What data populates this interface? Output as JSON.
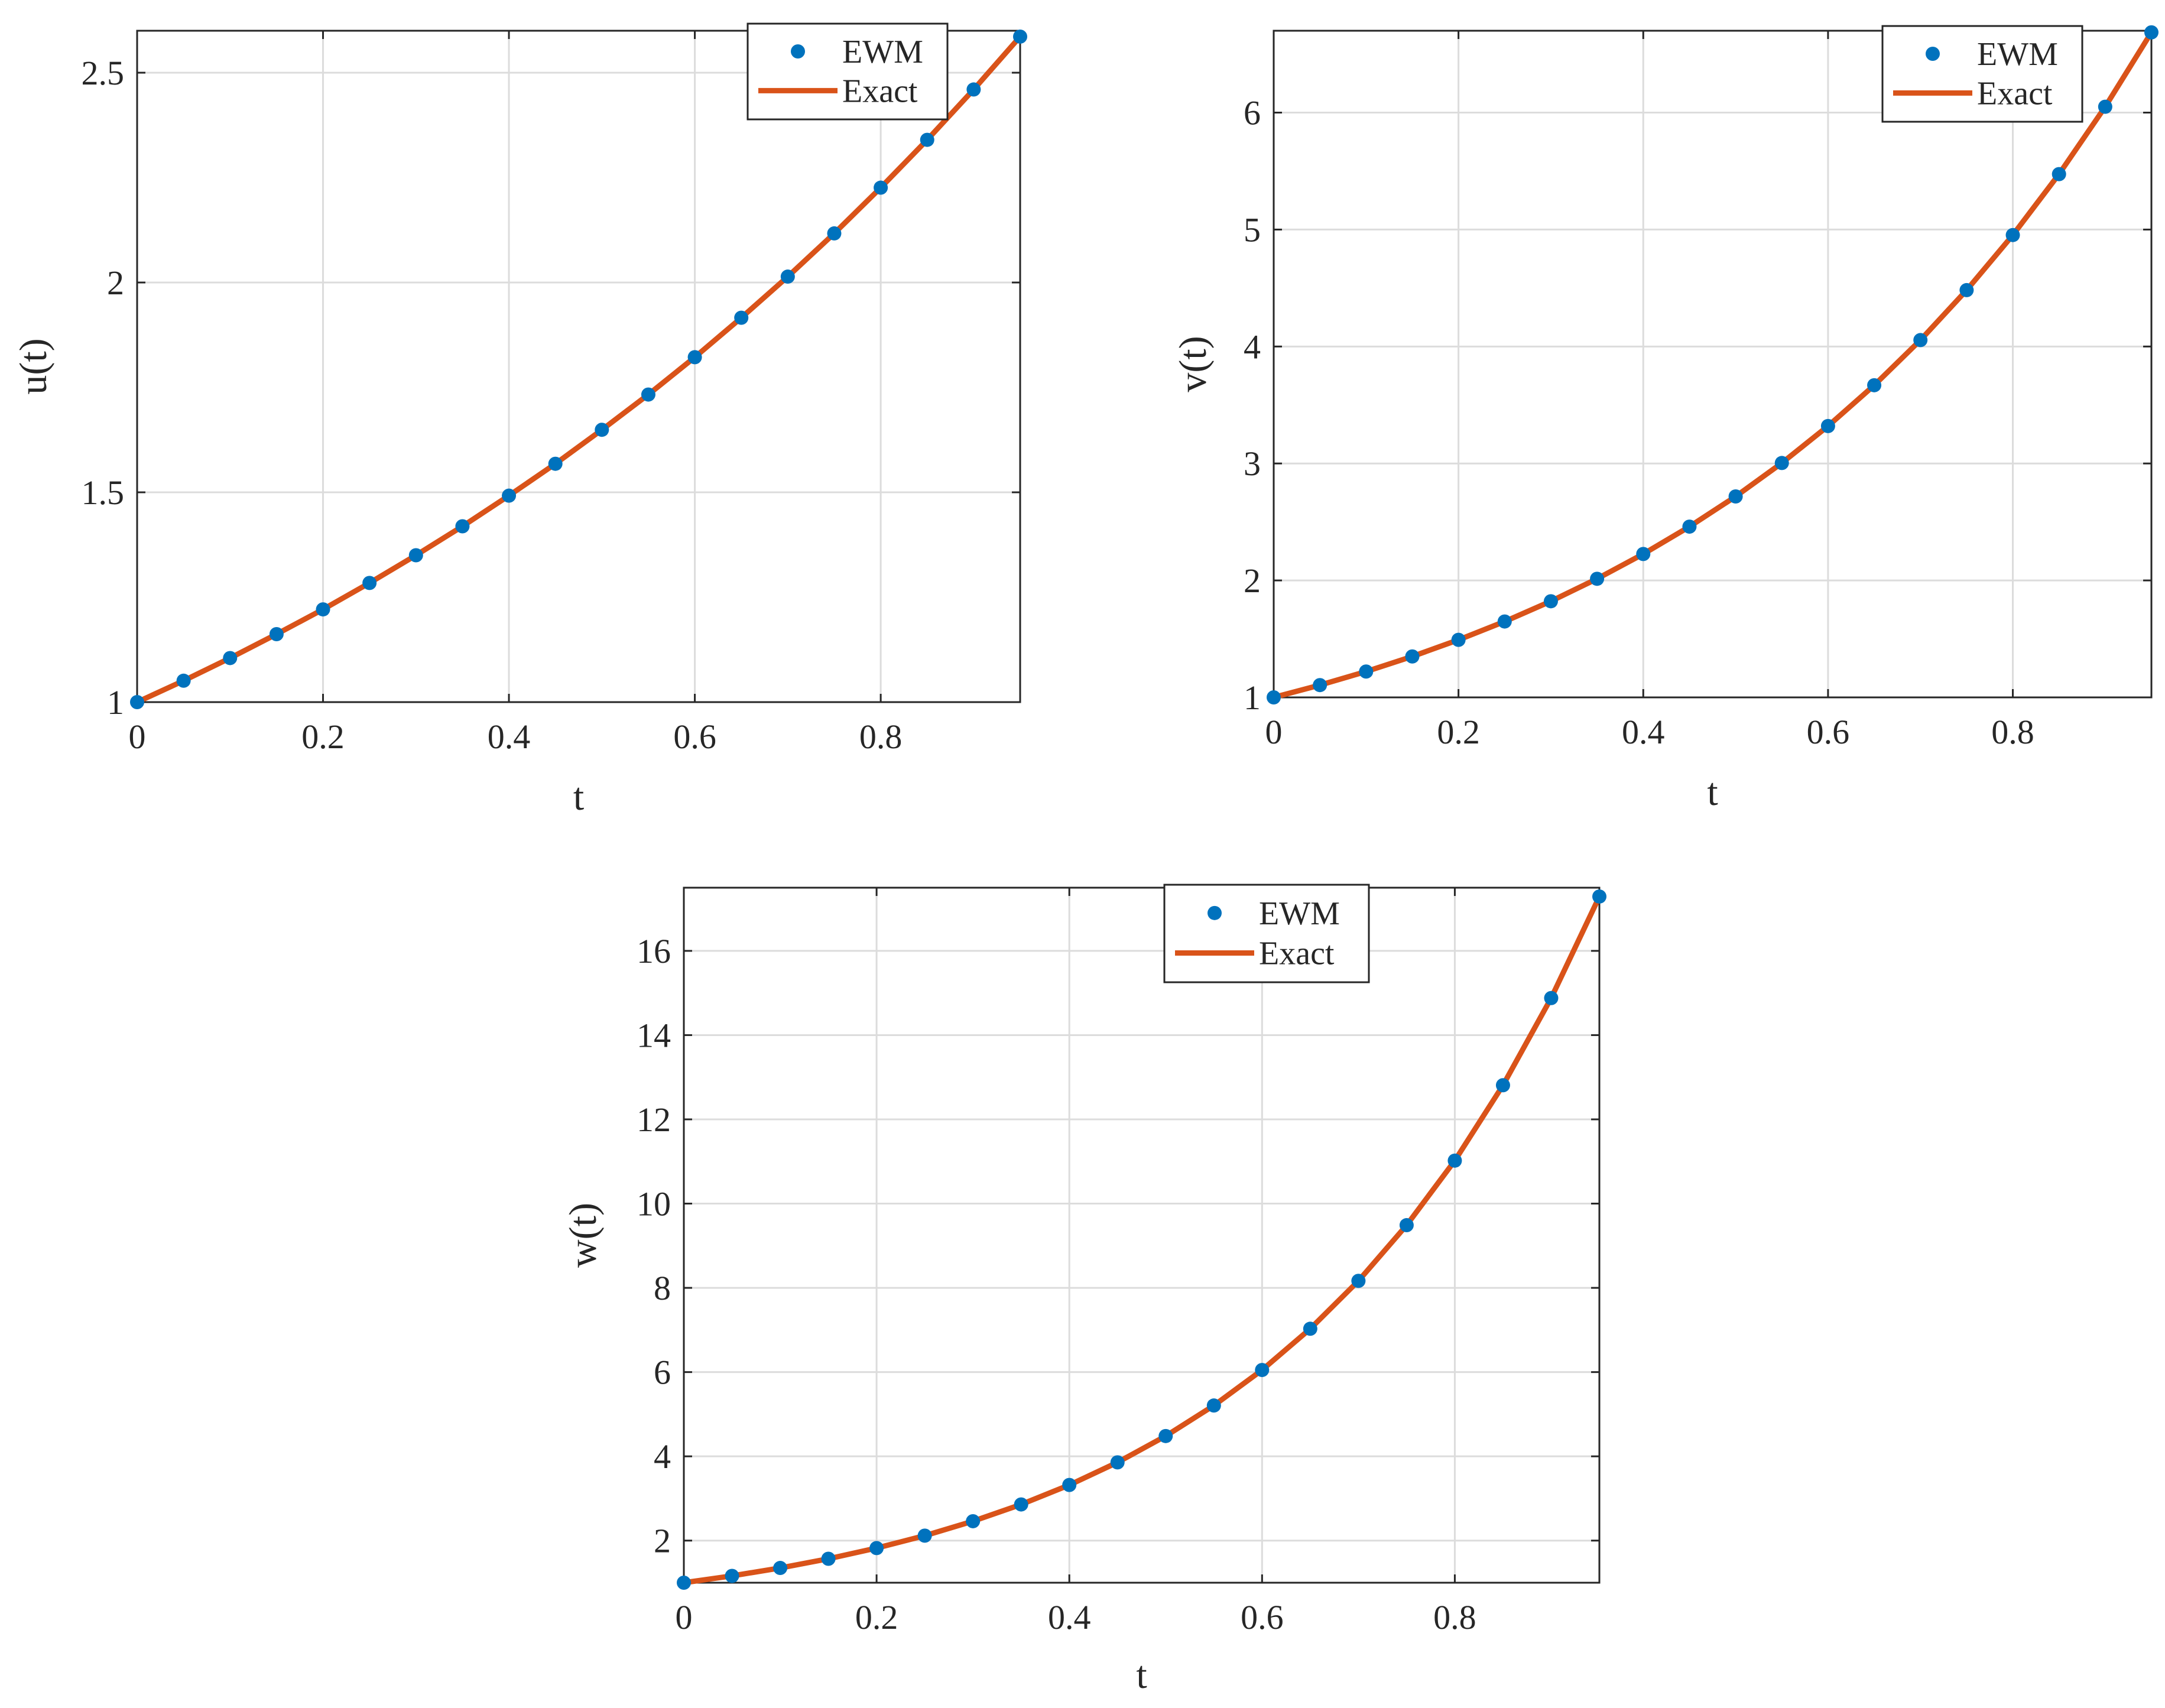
{
  "colors": {
    "ewm_marker": "#0072BD",
    "exact_line": "#D95319",
    "axis": "#262626",
    "grid": "#dcdcdc",
    "background": "#ffffff"
  },
  "legend": {
    "placement": "top-right",
    "box": true
  },
  "chart_data": [
    {
      "type": "line",
      "xlabel": "t",
      "ylabel": "u(t)",
      "xlim": [
        0,
        0.95
      ],
      "ylim": [
        1,
        2.6
      ],
      "grid": true,
      "x_ticks": [
        0,
        0.2,
        0.4,
        0.6,
        0.8
      ],
      "x_tick_labels": [
        "0",
        "0.2",
        "0.4",
        "0.6",
        "0.8"
      ],
      "y_ticks": [
        1,
        1.5,
        2,
        2.5
      ],
      "y_tick_labels": [
        "1",
        "1.5",
        "2",
        "2.5"
      ],
      "legend_entries": [
        "EWM",
        "Exact"
      ],
      "x": [
        0,
        0.05,
        0.1,
        0.15,
        0.2,
        0.25,
        0.3,
        0.35,
        0.4,
        0.45,
        0.5,
        0.55,
        0.6,
        0.65,
        0.7,
        0.75,
        0.8,
        0.85,
        0.9,
        0.95
      ],
      "series": [
        {
          "name": "EWM",
          "style": "markers",
          "values": [
            1.0,
            1.051,
            1.105,
            1.162,
            1.221,
            1.284,
            1.35,
            1.419,
            1.492,
            1.568,
            1.649,
            1.733,
            1.822,
            1.916,
            2.014,
            2.117,
            2.226,
            2.34,
            2.46,
            2.586
          ]
        },
        {
          "name": "Exact",
          "style": "line",
          "values": [
            1.0,
            1.051,
            1.105,
            1.162,
            1.221,
            1.284,
            1.35,
            1.419,
            1.492,
            1.568,
            1.649,
            1.733,
            1.822,
            1.916,
            2.014,
            2.117,
            2.226,
            2.34,
            2.46,
            2.586
          ]
        }
      ]
    },
    {
      "type": "line",
      "xlabel": "t",
      "ylabel": "v(t)",
      "xlim": [
        0,
        0.95
      ],
      "ylim": [
        1,
        6.7
      ],
      "grid": true,
      "x_ticks": [
        0,
        0.2,
        0.4,
        0.6,
        0.8
      ],
      "x_tick_labels": [
        "0",
        "0.2",
        "0.4",
        "0.6",
        "0.8"
      ],
      "y_ticks": [
        1,
        2,
        3,
        4,
        5,
        6
      ],
      "y_tick_labels": [
        "1",
        "2",
        "3",
        "4",
        "5",
        "6"
      ],
      "legend_entries": [
        "EWM",
        "Exact"
      ],
      "x": [
        0,
        0.05,
        0.1,
        0.15,
        0.2,
        0.25,
        0.3,
        0.35,
        0.4,
        0.45,
        0.5,
        0.55,
        0.6,
        0.65,
        0.7,
        0.75,
        0.8,
        0.85,
        0.9,
        0.95
      ],
      "series": [
        {
          "name": "EWM",
          "style": "markers",
          "values": [
            1.0,
            1.105,
            1.221,
            1.35,
            1.492,
            1.649,
            1.822,
            2.014,
            2.226,
            2.46,
            2.718,
            3.004,
            3.32,
            3.669,
            4.055,
            4.482,
            4.953,
            5.474,
            6.05,
            6.686
          ]
        },
        {
          "name": "Exact",
          "style": "line",
          "values": [
            1.0,
            1.105,
            1.221,
            1.35,
            1.492,
            1.649,
            1.822,
            2.014,
            2.226,
            2.46,
            2.718,
            3.004,
            3.32,
            3.669,
            4.055,
            4.482,
            4.953,
            5.474,
            6.05,
            6.686
          ]
        }
      ]
    },
    {
      "type": "line",
      "xlabel": "t",
      "ylabel": "w(t)",
      "xlim": [
        0,
        0.95
      ],
      "ylim": [
        1,
        17.5
      ],
      "grid": true,
      "x_ticks": [
        0,
        0.2,
        0.4,
        0.6,
        0.8
      ],
      "x_tick_labels": [
        "0",
        "0.2",
        "0.4",
        "0.6",
        "0.8"
      ],
      "y_ticks": [
        2,
        4,
        6,
        8,
        10,
        12,
        14,
        16
      ],
      "y_tick_labels": [
        "2",
        "4",
        "6",
        "8",
        "10",
        "12",
        "14",
        "16"
      ],
      "legend_entries": [
        "EWM",
        "Exact"
      ],
      "x": [
        0,
        0.05,
        0.1,
        0.15,
        0.2,
        0.25,
        0.3,
        0.35,
        0.4,
        0.45,
        0.5,
        0.55,
        0.6,
        0.65,
        0.7,
        0.75,
        0.8,
        0.85,
        0.9,
        0.95
      ],
      "series": [
        {
          "name": "EWM",
          "style": "markers",
          "values": [
            1.0,
            1.162,
            1.35,
            1.568,
            1.822,
            2.117,
            2.46,
            2.858,
            3.32,
            3.857,
            4.482,
            5.207,
            6.05,
            7.029,
            8.166,
            9.488,
            11.02,
            12.81,
            14.88,
            17.29
          ]
        },
        {
          "name": "Exact",
          "style": "line",
          "values": [
            1.0,
            1.162,
            1.35,
            1.568,
            1.822,
            2.117,
            2.46,
            2.858,
            3.32,
            3.857,
            4.482,
            5.207,
            6.05,
            7.029,
            8.166,
            9.488,
            11.02,
            12.81,
            14.88,
            17.29
          ]
        }
      ]
    }
  ]
}
